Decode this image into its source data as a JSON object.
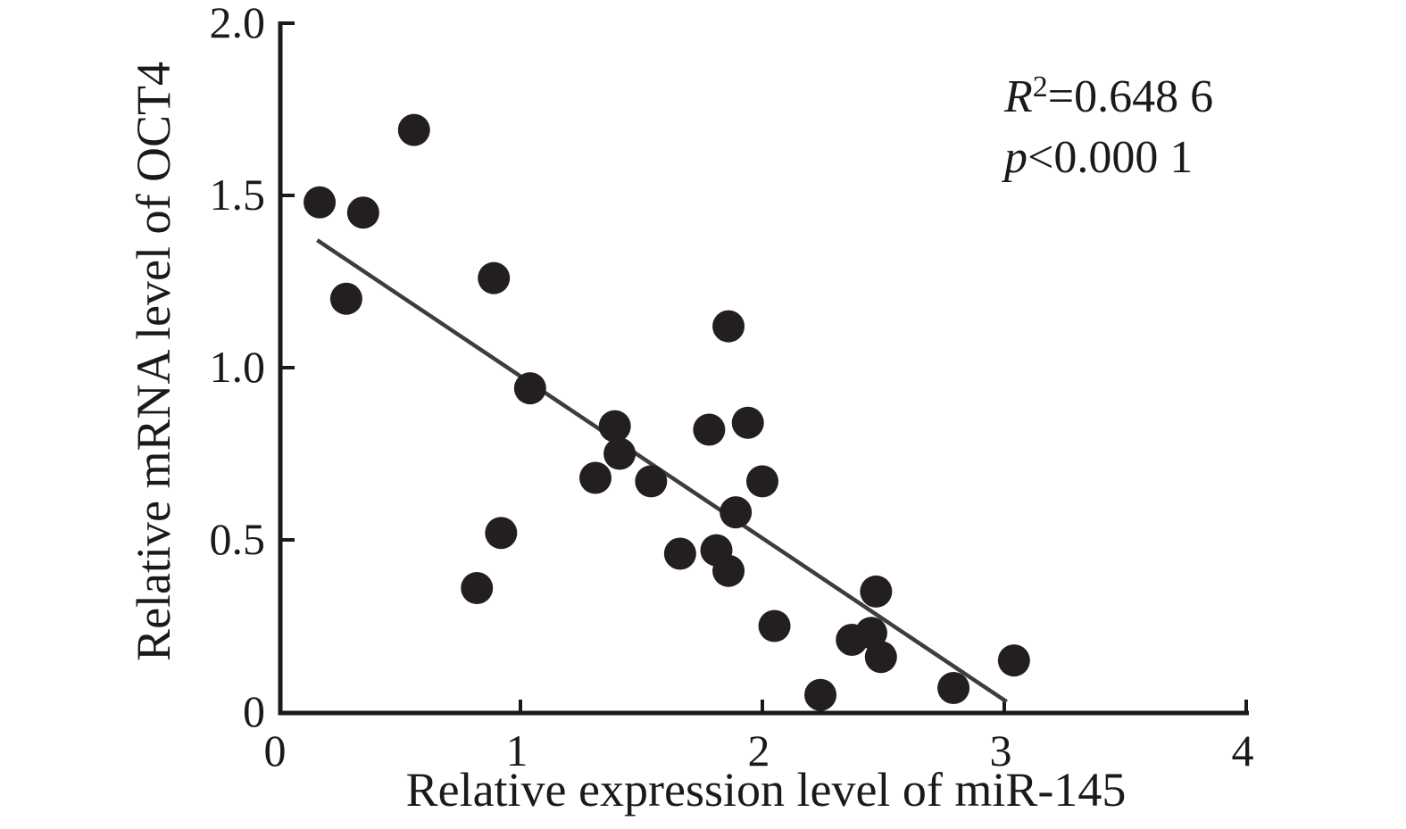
{
  "chart_data": {
    "type": "scatter",
    "title": "",
    "xlabel": "Relative expression level of miR-145",
    "ylabel": "Relative mRNA level of OCT4",
    "xlim": [
      0,
      4
    ],
    "ylim": [
      0,
      2.0
    ],
    "grid": false,
    "legend_position": "none",
    "x_ticks": [
      {
        "v": 0,
        "label": "0",
        "mark": false
      },
      {
        "v": 1,
        "label": "1",
        "mark": true
      },
      {
        "v": 2,
        "label": "2",
        "mark": true
      },
      {
        "v": 3,
        "label": "3",
        "mark": true
      },
      {
        "v": 4,
        "label": "4",
        "mark": true
      }
    ],
    "y_ticks": [
      {
        "v": 0,
        "label": "0",
        "mark": false
      },
      {
        "v": 0.5,
        "label": "0.5",
        "mark": true
      },
      {
        "v": 1.0,
        "label": "1.0",
        "mark": true
      },
      {
        "v": 1.5,
        "label": "1.5",
        "mark": true
      },
      {
        "v": 2.0,
        "label": "2.0",
        "mark": true
      }
    ],
    "points": [
      [
        0.17,
        1.48
      ],
      [
        0.28,
        1.2
      ],
      [
        0.35,
        1.45
      ],
      [
        0.56,
        1.69
      ],
      [
        0.82,
        0.36
      ],
      [
        0.89,
        1.26
      ],
      [
        0.92,
        0.52
      ],
      [
        1.04,
        0.94
      ],
      [
        1.31,
        0.68
      ],
      [
        1.39,
        0.83
      ],
      [
        1.41,
        0.75
      ],
      [
        1.54,
        0.67
      ],
      [
        1.66,
        0.46
      ],
      [
        1.78,
        0.82
      ],
      [
        1.81,
        0.47
      ],
      [
        1.86,
        0.41
      ],
      [
        1.86,
        1.12
      ],
      [
        1.89,
        0.58
      ],
      [
        1.94,
        0.84
      ],
      [
        2.0,
        0.67
      ],
      [
        2.05,
        0.25
      ],
      [
        2.24,
        0.05
      ],
      [
        2.37,
        0.21
      ],
      [
        2.45,
        0.23
      ],
      [
        2.47,
        0.35
      ],
      [
        2.49,
        0.16
      ],
      [
        2.79,
        0.07
      ],
      [
        3.04,
        0.15
      ]
    ],
    "trend_line": {
      "x1": 0.16,
      "y1": 1.37,
      "x2": 3.01,
      "y2": 0.03
    },
    "annotation": {
      "r2_var": "R",
      "r2_sup": "2",
      "r2_rest": "=0.648 6",
      "p_var": "p",
      "p_rest": "<0.000 1"
    },
    "colors": {
      "point": "#231f20",
      "trend": "#3d3d3d",
      "axis": "#1a1a1a",
      "text": "#1a1a1a",
      "background": "#ffffff"
    }
  }
}
